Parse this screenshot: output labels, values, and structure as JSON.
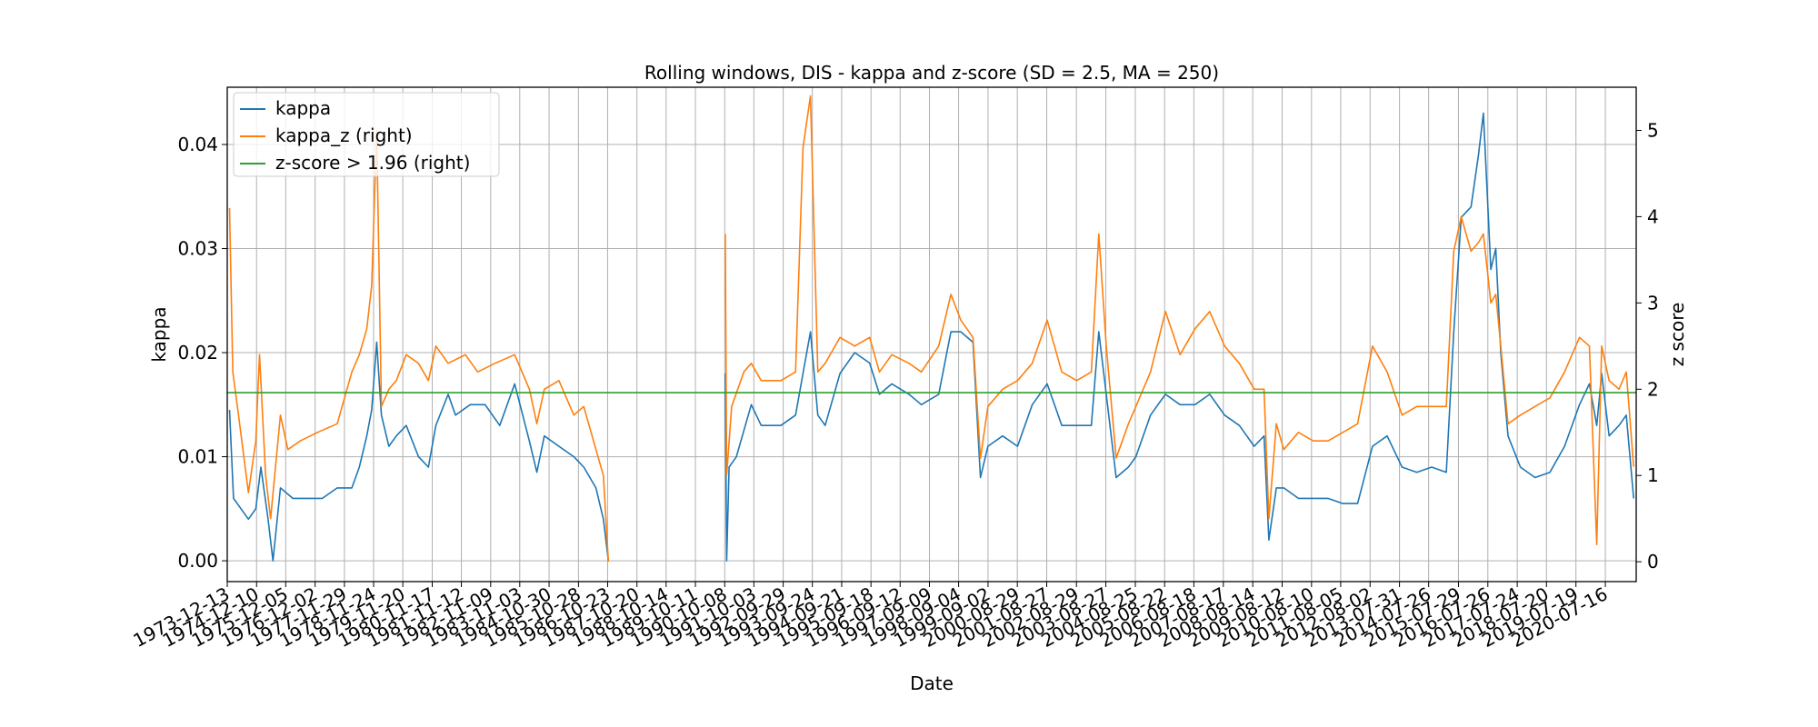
{
  "chart_data": {
    "type": "line",
    "title": "Rolling windows, DIS - kappa and z-score (SD = 2.5, MA = 250)",
    "xlabel": "Date",
    "ylabel_left": "kappa",
    "ylabel_right": "z score",
    "xlim": [
      "1973-12-13",
      "2021-08-01"
    ],
    "ylim_left": [
      -0.002,
      0.0455
    ],
    "ylim_right": [
      -0.23,
      5.5
    ],
    "left_ticks": [
      "0.00",
      "0.01",
      "0.02",
      "0.03",
      "0.04"
    ],
    "right_ticks": [
      "0",
      "1",
      "2",
      "3",
      "4",
      "5"
    ],
    "x_ticks": [
      "1973-12-13",
      "1974-12-10",
      "1975-12-05",
      "1976-12-02",
      "1977-11-29",
      "1978-11-24",
      "1979-11-20",
      "1980-11-17",
      "1981-11-12",
      "1982-11-09",
      "1983-11-03",
      "1984-10-30",
      "1985-10-28",
      "1986-10-23",
      "1987-10-20",
      "1988-10-14",
      "1989-10-11",
      "1990-10-08",
      "1991-10-03",
      "1992-09-29",
      "1993-09-24",
      "1994-09-21",
      "1995-09-18",
      "1996-09-12",
      "1997-09-09",
      "1998-09-04",
      "1999-09-02",
      "2000-08-29",
      "2001-08-27",
      "2002-08-29",
      "2003-08-27",
      "2004-08-25",
      "2005-08-22",
      "2006-08-18",
      "2007-08-17",
      "2008-08-14",
      "2009-08-12",
      "2010-08-10",
      "2011-08-05",
      "2012-08-02",
      "2013-07-31",
      "2014-07-26",
      "2015-07-29",
      "2016-07-26",
      "2017-07-24",
      "2018-07-20",
      "2019-07-19",
      "2020-07-16"
    ],
    "grid": true,
    "legend_position": "top-left",
    "threshold": 1.96,
    "series": [
      {
        "name": "kappa",
        "axis": "left",
        "color": "#1f77b4",
        "points": [
          [
            "1974-01-10",
            0.0145
          ],
          [
            "1974-03-01",
            0.006
          ],
          [
            "1974-06-01",
            0.005
          ],
          [
            "1974-09-01",
            0.004
          ],
          [
            "1974-12-01",
            0.005
          ],
          [
            "1975-02-01",
            0.009
          ],
          [
            "1975-05-01",
            0.004
          ],
          [
            "1975-07-01",
            0.0
          ],
          [
            "1975-10-01",
            0.007
          ],
          [
            "1976-03-01",
            0.006
          ],
          [
            "1976-09-01",
            0.006
          ],
          [
            "1977-03-01",
            0.006
          ],
          [
            "1977-09-01",
            0.007
          ],
          [
            "1978-03-01",
            0.007
          ],
          [
            "1978-06-01",
            0.009
          ],
          [
            "1978-09-01",
            0.012
          ],
          [
            "1978-11-01",
            0.0145
          ],
          [
            "1979-01-01",
            0.021
          ],
          [
            "1979-03-01",
            0.014
          ],
          [
            "1979-06-01",
            0.011
          ],
          [
            "1979-09-01",
            0.012
          ],
          [
            "1980-01-01",
            0.013
          ],
          [
            "1980-06-01",
            0.01
          ],
          [
            "1980-10-01",
            0.009
          ],
          [
            "1981-01-01",
            0.013
          ],
          [
            "1981-06-01",
            0.016
          ],
          [
            "1981-09-01",
            0.014
          ],
          [
            "1982-03-01",
            0.015
          ],
          [
            "1982-09-01",
            0.015
          ],
          [
            "1983-03-01",
            0.013
          ],
          [
            "1983-09-01",
            0.017
          ],
          [
            "1984-03-01",
            0.0115
          ],
          [
            "1984-06-01",
            0.0085
          ],
          [
            "1984-09-01",
            0.012
          ],
          [
            "1985-03-01",
            0.011
          ],
          [
            "1985-09-01",
            0.01
          ],
          [
            "1986-01-01",
            0.009
          ],
          [
            "1986-06-01",
            0.007
          ],
          [
            "1986-09-01",
            0.004
          ],
          [
            "1986-11-01",
            0.0
          ]
        ]
      },
      {
        "name": "kappa",
        "axis": "left",
        "color": "#1f77b4",
        "points": [
          [
            "1990-10-15",
            0.018
          ],
          [
            "1990-11-01",
            0.0
          ],
          [
            "1990-12-01",
            0.009
          ],
          [
            "1991-03-01",
            0.01
          ],
          [
            "1991-09-01",
            0.015
          ],
          [
            "1992-01-01",
            0.013
          ],
          [
            "1992-09-01",
            0.013
          ],
          [
            "1993-03-01",
            0.014
          ],
          [
            "1993-06-01",
            0.018
          ],
          [
            "1993-09-01",
            0.022
          ],
          [
            "1993-12-01",
            0.014
          ],
          [
            "1994-03-01",
            0.013
          ],
          [
            "1994-09-01",
            0.018
          ],
          [
            "1995-03-01",
            0.02
          ],
          [
            "1995-09-01",
            0.019
          ],
          [
            "1996-01-01",
            0.016
          ],
          [
            "1996-06-01",
            0.017
          ],
          [
            "1997-01-01",
            0.016
          ],
          [
            "1997-06-01",
            0.015
          ],
          [
            "1998-01-01",
            0.016
          ],
          [
            "1998-06-01",
            0.022
          ],
          [
            "1998-10-01",
            0.022
          ],
          [
            "1999-03-01",
            0.021
          ],
          [
            "1999-06-01",
            0.008
          ],
          [
            "1999-09-01",
            0.011
          ],
          [
            "2000-03-01",
            0.012
          ],
          [
            "2000-09-01",
            0.011
          ],
          [
            "2001-03-01",
            0.015
          ],
          [
            "2001-09-01",
            0.017
          ],
          [
            "2002-03-01",
            0.013
          ],
          [
            "2002-09-01",
            0.013
          ],
          [
            "2003-03-01",
            0.013
          ],
          [
            "2003-06-01",
            0.022
          ],
          [
            "2003-09-01",
            0.016
          ],
          [
            "2004-01-01",
            0.008
          ],
          [
            "2004-06-01",
            0.009
          ],
          [
            "2004-09-01",
            0.01
          ],
          [
            "2005-03-01",
            0.014
          ],
          [
            "2005-09-01",
            0.016
          ],
          [
            "2006-03-01",
            0.015
          ],
          [
            "2006-09-01",
            0.015
          ],
          [
            "2007-03-01",
            0.016
          ],
          [
            "2007-09-01",
            0.014
          ],
          [
            "2008-03-01",
            0.013
          ],
          [
            "2008-09-01",
            0.011
          ],
          [
            "2009-01-01",
            0.012
          ],
          [
            "2009-03-01",
            0.002
          ],
          [
            "2009-06-01",
            0.007
          ],
          [
            "2009-09-01",
            0.007
          ],
          [
            "2010-03-01",
            0.006
          ],
          [
            "2010-09-01",
            0.006
          ],
          [
            "2011-03-01",
            0.006
          ],
          [
            "2011-09-01",
            0.0055
          ],
          [
            "2012-03-01",
            0.0055
          ],
          [
            "2012-09-01",
            0.011
          ],
          [
            "2013-03-01",
            0.012
          ],
          [
            "2013-09-01",
            0.009
          ],
          [
            "2014-03-01",
            0.0085
          ],
          [
            "2014-09-01",
            0.009
          ],
          [
            "2015-03-01",
            0.0085
          ],
          [
            "2015-06-01",
            0.022
          ],
          [
            "2015-09-01",
            0.033
          ],
          [
            "2016-01-01",
            0.034
          ],
          [
            "2016-04-01",
            0.039
          ],
          [
            "2016-06-01",
            0.043
          ],
          [
            "2016-09-01",
            0.028
          ],
          [
            "2016-11-01",
            0.03
          ],
          [
            "2017-01-01",
            0.02
          ],
          [
            "2017-04-01",
            0.012
          ],
          [
            "2017-09-01",
            0.009
          ],
          [
            "2018-03-01",
            0.008
          ],
          [
            "2018-09-01",
            0.0085
          ],
          [
            "2019-03-01",
            0.011
          ],
          [
            "2019-09-01",
            0.015
          ],
          [
            "2020-01-01",
            0.017
          ],
          [
            "2020-04-01",
            0.013
          ],
          [
            "2020-06-01",
            0.018
          ],
          [
            "2020-09-01",
            0.012
          ],
          [
            "2021-01-01",
            0.013
          ],
          [
            "2021-04-01",
            0.014
          ],
          [
            "2021-07-01",
            0.006
          ]
        ]
      },
      {
        "name": "kappa_z (right)",
        "axis": "right",
        "color": "#ff7f0e",
        "points": [
          [
            "1974-01-10",
            4.1
          ],
          [
            "1974-02-20",
            2.2
          ],
          [
            "1974-05-01",
            1.7
          ],
          [
            "1974-09-01",
            0.8
          ],
          [
            "1974-12-01",
            1.4
          ],
          [
            "1975-01-15",
            2.4
          ],
          [
            "1975-04-01",
            1.0
          ],
          [
            "1975-06-01",
            0.5
          ],
          [
            "1975-10-01",
            1.7
          ],
          [
            "1976-01-01",
            1.3
          ],
          [
            "1976-06-01",
            1.4
          ],
          [
            "1977-01-01",
            1.5
          ],
          [
            "1977-09-01",
            1.6
          ],
          [
            "1978-03-01",
            2.2
          ],
          [
            "1978-06-01",
            2.4
          ],
          [
            "1978-09-01",
            2.7
          ],
          [
            "1978-11-01",
            3.2
          ],
          [
            "1979-01-01",
            5.0
          ],
          [
            "1979-03-01",
            1.8
          ],
          [
            "1979-06-01",
            2.0
          ],
          [
            "1979-09-01",
            2.1
          ],
          [
            "1980-01-01",
            2.4
          ],
          [
            "1980-06-01",
            2.3
          ],
          [
            "1980-10-01",
            2.1
          ],
          [
            "1981-01-01",
            2.5
          ],
          [
            "1981-06-01",
            2.3
          ],
          [
            "1982-01-01",
            2.4
          ],
          [
            "1982-06-01",
            2.2
          ],
          [
            "1983-01-01",
            2.3
          ],
          [
            "1983-09-01",
            2.4
          ],
          [
            "1984-03-01",
            2.0
          ],
          [
            "1984-06-01",
            1.6
          ],
          [
            "1984-09-01",
            2.0
          ],
          [
            "1985-03-01",
            2.1
          ],
          [
            "1985-09-01",
            1.7
          ],
          [
            "1986-01-01",
            1.8
          ],
          [
            "1986-06-01",
            1.3
          ],
          [
            "1986-09-01",
            1.0
          ],
          [
            "1986-11-01",
            0.0
          ]
        ]
      },
      {
        "name": "kappa_z (right)",
        "axis": "right",
        "color": "#ff7f0e",
        "points": [
          [
            "1990-10-15",
            3.8
          ],
          [
            "1990-11-01",
            1.0
          ],
          [
            "1991-01-01",
            1.8
          ],
          [
            "1991-06-01",
            2.2
          ],
          [
            "1991-09-01",
            2.3
          ],
          [
            "1992-01-01",
            2.1
          ],
          [
            "1992-09-01",
            2.1
          ],
          [
            "1993-03-01",
            2.2
          ],
          [
            "1993-06-01",
            4.8
          ],
          [
            "1993-09-01",
            5.4
          ],
          [
            "1993-12-01",
            2.2
          ],
          [
            "1994-03-01",
            2.3
          ],
          [
            "1994-09-01",
            2.6
          ],
          [
            "1995-03-01",
            2.5
          ],
          [
            "1995-09-01",
            2.6
          ],
          [
            "1996-01-01",
            2.2
          ],
          [
            "1996-06-01",
            2.4
          ],
          [
            "1997-01-01",
            2.3
          ],
          [
            "1997-06-01",
            2.2
          ],
          [
            "1998-01-01",
            2.5
          ],
          [
            "1998-06-01",
            3.1
          ],
          [
            "1998-10-01",
            2.8
          ],
          [
            "1999-03-01",
            2.6
          ],
          [
            "1999-06-01",
            1.2
          ],
          [
            "1999-09-01",
            1.8
          ],
          [
            "2000-03-01",
            2.0
          ],
          [
            "2000-09-01",
            2.1
          ],
          [
            "2001-03-01",
            2.3
          ],
          [
            "2001-09-01",
            2.8
          ],
          [
            "2002-03-01",
            2.2
          ],
          [
            "2002-09-01",
            2.1
          ],
          [
            "2003-03-01",
            2.2
          ],
          [
            "2003-06-01",
            3.8
          ],
          [
            "2003-09-01",
            2.5
          ],
          [
            "2004-01-01",
            1.2
          ],
          [
            "2004-06-01",
            1.6
          ],
          [
            "2004-09-01",
            1.8
          ],
          [
            "2005-03-01",
            2.2
          ],
          [
            "2005-09-01",
            2.9
          ],
          [
            "2006-03-01",
            2.4
          ],
          [
            "2006-09-01",
            2.7
          ],
          [
            "2007-03-01",
            2.9
          ],
          [
            "2007-09-01",
            2.5
          ],
          [
            "2008-03-01",
            2.3
          ],
          [
            "2008-09-01",
            2.0
          ],
          [
            "2009-01-01",
            2.0
          ],
          [
            "2009-03-01",
            0.5
          ],
          [
            "2009-06-01",
            1.6
          ],
          [
            "2009-09-01",
            1.3
          ],
          [
            "2010-03-01",
            1.5
          ],
          [
            "2010-09-01",
            1.4
          ],
          [
            "2011-03-01",
            1.4
          ],
          [
            "2011-09-01",
            1.5
          ],
          [
            "2012-03-01",
            1.6
          ],
          [
            "2012-09-01",
            2.5
          ],
          [
            "2013-03-01",
            2.2
          ],
          [
            "2013-09-01",
            1.7
          ],
          [
            "2014-03-01",
            1.8
          ],
          [
            "2014-09-01",
            1.8
          ],
          [
            "2015-03-01",
            1.8
          ],
          [
            "2015-06-01",
            3.6
          ],
          [
            "2015-09-01",
            4.0
          ],
          [
            "2016-01-01",
            3.6
          ],
          [
            "2016-04-01",
            3.7
          ],
          [
            "2016-06-01",
            3.8
          ],
          [
            "2016-09-01",
            3.0
          ],
          [
            "2016-11-01",
            3.1
          ],
          [
            "2017-01-01",
            2.5
          ],
          [
            "2017-04-01",
            1.6
          ],
          [
            "2017-09-01",
            1.7
          ],
          [
            "2018-03-01",
            1.8
          ],
          [
            "2018-09-01",
            1.9
          ],
          [
            "2019-03-01",
            2.2
          ],
          [
            "2019-09-01",
            2.6
          ],
          [
            "2020-01-01",
            2.5
          ],
          [
            "2020-04-01",
            0.2
          ],
          [
            "2020-06-01",
            2.5
          ],
          [
            "2020-09-01",
            2.1
          ],
          [
            "2021-01-01",
            2.0
          ],
          [
            "2021-04-01",
            2.2
          ],
          [
            "2021-07-01",
            1.1
          ]
        ]
      },
      {
        "name": "z-score > 1.96 (right)",
        "axis": "right",
        "color": "#2ca02c",
        "points": [
          [
            "1973-12-13",
            1.96
          ],
          [
            "2021-08-01",
            1.96
          ]
        ]
      }
    ],
    "legend": [
      {
        "label": "kappa",
        "color": "#1f77b4"
      },
      {
        "label": "kappa_z (right)",
        "color": "#ff7f0e"
      },
      {
        "label": "z-score > 1.96 (right)",
        "color": "#2ca02c"
      }
    ]
  }
}
